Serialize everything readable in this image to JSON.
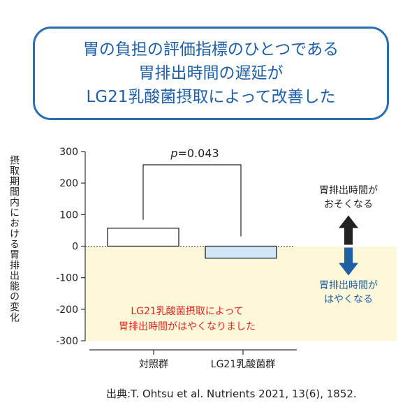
{
  "title_lines": [
    "胃の負担の評価指標のひとつである",
    "胃排出時間の遅延が",
    "LG21乳酸菌摂取によって改善した"
  ],
  "chart_data": {
    "type": "bar",
    "categories": [
      "対照群",
      "LG21乳酸菌群"
    ],
    "values": [
      57,
      -38
    ],
    "ylabel": "摂取期間内における胃排出能の変化",
    "ylim": [
      -300,
      300
    ],
    "yticks": [
      300,
      200,
      100,
      0,
      -100,
      -200,
      -300
    ],
    "p_value_label": "p=0.043",
    "improved_region_note": [
      "LG21乳酸菌摂取によって",
      "胃排出時間がはやくなりました"
    ],
    "arrow_up_label": [
      "胃排出時間が",
      "おそくなる"
    ],
    "arrow_down_label": [
      "胃排出時間が",
      "はやくなる"
    ],
    "bar_colors": [
      "#ffffff",
      "#cfe6f7"
    ],
    "region_color": "#fdf8da",
    "note_color": "#e0261f",
    "arrow_down_color": "#1f5fa6"
  },
  "source": "出典:T. Ohtsu et al. Nutrients 2021, 13(6), 1852."
}
